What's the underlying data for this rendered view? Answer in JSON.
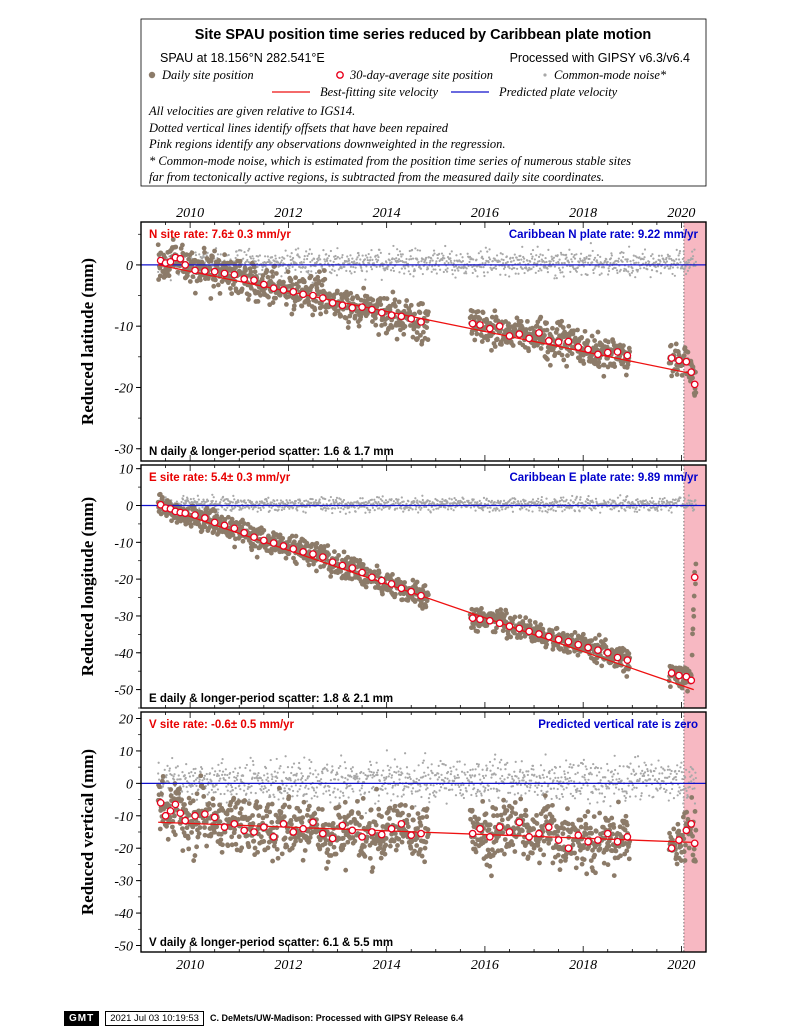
{
  "header": {
    "title": "Site SPAU position time series reduced by Caribbean plate motion",
    "site_line": "SPAU at 18.156°N 282.541°E",
    "processing": "Processed with GIPSY v6.3/v6.4",
    "legend": {
      "daily": "Daily site position",
      "avg30": "30-day-average site position",
      "cmn": "Common-mode noise*",
      "best": "Best-fitting site velocity",
      "pred": "Predicted plate velocity"
    },
    "notes": [
      "All velocities are given relative to IGS14.",
      "Dotted vertical lines identify offsets that have been repaired",
      "Pink regions identify any observations downweighted in the regression.",
      "* Common-mode noise, which is estimated from the position time series of numerous stable sites",
      "far from tectonically active regions, is subtracted from the measured daily site coordinates."
    ]
  },
  "colors": {
    "daily": "#8c7b69",
    "avg_edge": "#e8001c",
    "cmn": "#a8a8a8",
    "fit": "#ee1111",
    "plate": "#1010cc",
    "pink": "#f7b8c2",
    "site_rate_text": "#e80000",
    "plate_rate_text": "#0000cc"
  },
  "chart_data": [
    {
      "type": "scatter",
      "component": "N",
      "ylabel": "Reduced latitude (mm)",
      "site_rate": "N site rate:  7.6± 0.3 mm/yr",
      "plate_rate": "Caribbean N plate rate: 9.22 mm/yr",
      "scatter": "N daily & longer-period scatter:   1.6 &   1.7 mm",
      "xlim": [
        2009.0,
        2020.5
      ],
      "ylim": [
        -32,
        7
      ],
      "yticks": [
        0,
        -10,
        -20,
        -30
      ],
      "xticks": [
        2010,
        2012,
        2014,
        2016,
        2018,
        2020
      ],
      "fit_line": [
        [
          2009.35,
          0.0
        ],
        [
          2020.25,
          -17.8
        ]
      ],
      "downweighted_from": 2020.05,
      "offset_epochs": [
        2020.05
      ],
      "segments": [
        [
          2009.35,
          2014.85
        ],
        [
          2015.7,
          2018.95
        ],
        [
          2019.75,
          2020.3
        ]
      ],
      "avg30": [
        [
          2009.4,
          0.7
        ],
        [
          2009.5,
          0.3
        ],
        [
          2009.6,
          0.5
        ],
        [
          2009.7,
          1.2
        ],
        [
          2009.8,
          1.0
        ],
        [
          2009.9,
          0.0
        ],
        [
          2010.1,
          -0.9
        ],
        [
          2010.3,
          -1.0
        ],
        [
          2010.5,
          -1.1
        ],
        [
          2010.7,
          -1.4
        ],
        [
          2010.9,
          -1.6
        ],
        [
          2011.1,
          -2.3
        ],
        [
          2011.3,
          -2.5
        ],
        [
          2011.5,
          -3.2
        ],
        [
          2011.7,
          -3.8
        ],
        [
          2011.9,
          -4.1
        ],
        [
          2012.1,
          -4.4
        ],
        [
          2012.3,
          -4.8
        ],
        [
          2012.5,
          -5.0
        ],
        [
          2012.7,
          -5.4
        ],
        [
          2012.9,
          -6.2
        ],
        [
          2013.1,
          -6.6
        ],
        [
          2013.3,
          -7.0
        ],
        [
          2013.5,
          -6.9
        ],
        [
          2013.7,
          -7.3
        ],
        [
          2013.9,
          -7.8
        ],
        [
          2014.1,
          -8.2
        ],
        [
          2014.3,
          -8.4
        ],
        [
          2014.5,
          -8.8
        ],
        [
          2014.7,
          -9.3
        ],
        [
          2015.75,
          -9.6
        ],
        [
          2015.9,
          -9.8
        ],
        [
          2016.1,
          -10.4
        ],
        [
          2016.3,
          -10.0
        ],
        [
          2016.5,
          -11.6
        ],
        [
          2016.7,
          -11.3
        ],
        [
          2016.9,
          -12.0
        ],
        [
          2017.1,
          -11.1
        ],
        [
          2017.3,
          -12.4
        ],
        [
          2017.5,
          -12.6
        ],
        [
          2017.7,
          -12.5
        ],
        [
          2017.9,
          -13.4
        ],
        [
          2018.1,
          -13.8
        ],
        [
          2018.3,
          -14.6
        ],
        [
          2018.5,
          -14.3
        ],
        [
          2018.7,
          -14.2
        ],
        [
          2018.9,
          -14.8
        ],
        [
          2019.8,
          -15.2
        ],
        [
          2019.95,
          -15.6
        ],
        [
          2020.1,
          -15.8
        ],
        [
          2020.2,
          -17.5
        ],
        [
          2020.27,
          -19.5
        ]
      ]
    },
    {
      "type": "scatter",
      "component": "E",
      "ylabel": "Reduced longitude (mm)",
      "site_rate": "E site rate:  5.4± 0.3 mm/yr",
      "plate_rate": "Caribbean E plate rate: 9.89 mm/yr",
      "scatter": "E daily & longer-period scatter:   1.8 &   2.1 mm",
      "xlim": [
        2009.0,
        2020.5
      ],
      "ylim": [
        -55,
        11
      ],
      "yticks": [
        10,
        0,
        -10,
        -20,
        -30,
        -40,
        -50
      ],
      "xticks": [
        2010,
        2012,
        2014,
        2016,
        2018,
        2020
      ],
      "fit_line": [
        [
          2009.35,
          0.0
        ],
        [
          2020.25,
          -50.0
        ]
      ],
      "downweighted_from": 2020.05,
      "offset_epochs": [
        2020.05
      ],
      "segments": [
        [
          2009.35,
          2014.85
        ],
        [
          2015.7,
          2018.95
        ],
        [
          2019.75,
          2020.3
        ]
      ],
      "avg30": [
        [
          2009.4,
          0.2
        ],
        [
          2009.5,
          -0.7
        ],
        [
          2009.6,
          -0.9
        ],
        [
          2009.7,
          -1.6
        ],
        [
          2009.8,
          -1.9
        ],
        [
          2009.9,
          -2.1
        ],
        [
          2010.1,
          -2.6
        ],
        [
          2010.3,
          -3.4
        ],
        [
          2010.5,
          -4.6
        ],
        [
          2010.7,
          -5.4
        ],
        [
          2010.9,
          -6.2
        ],
        [
          2011.1,
          -7.4
        ],
        [
          2011.3,
          -8.6
        ],
        [
          2011.5,
          -9.5
        ],
        [
          2011.7,
          -10.2
        ],
        [
          2011.9,
          -11.0
        ],
        [
          2012.1,
          -11.8
        ],
        [
          2012.3,
          -12.6
        ],
        [
          2012.5,
          -13.2
        ],
        [
          2012.7,
          -14.0
        ],
        [
          2012.9,
          -15.4
        ],
        [
          2013.1,
          -16.3
        ],
        [
          2013.3,
          -17.0
        ],
        [
          2013.5,
          -18.2
        ],
        [
          2013.7,
          -19.5
        ],
        [
          2013.9,
          -20.4
        ],
        [
          2014.1,
          -21.3
        ],
        [
          2014.3,
          -22.5
        ],
        [
          2014.5,
          -23.4
        ],
        [
          2014.7,
          -24.5
        ],
        [
          2015.75,
          -30.6
        ],
        [
          2015.9,
          -30.9
        ],
        [
          2016.1,
          -31.3
        ],
        [
          2016.3,
          -32.0
        ],
        [
          2016.5,
          -32.8
        ],
        [
          2016.7,
          -33.4
        ],
        [
          2016.9,
          -34.2
        ],
        [
          2017.1,
          -34.9
        ],
        [
          2017.3,
          -35.6
        ],
        [
          2017.5,
          -36.4
        ],
        [
          2017.7,
          -37.0
        ],
        [
          2017.9,
          -37.8
        ],
        [
          2018.1,
          -38.6
        ],
        [
          2018.3,
          -39.3
        ],
        [
          2018.5,
          -40.0
        ],
        [
          2018.7,
          -41.3
        ],
        [
          2018.9,
          -42.0
        ],
        [
          2019.8,
          -45.5
        ],
        [
          2019.95,
          -46.2
        ],
        [
          2020.1,
          -46.5
        ],
        [
          2020.2,
          -47.5
        ],
        [
          2020.27,
          -19.5
        ]
      ]
    },
    {
      "type": "scatter",
      "component": "V",
      "ylabel": "Reduced vertical (mm)",
      "site_rate": "V site rate:  -0.6± 0.5 mm/yr",
      "plate_rate": "Predicted vertical rate is zero",
      "scatter": "V daily & longer-period scatter:   6.1 &   5.5 mm",
      "xlim": [
        2009.0,
        2020.5
      ],
      "ylim": [
        -52,
        22
      ],
      "yticks": [
        20,
        10,
        0,
        -10,
        -20,
        -30,
        -40,
        -50
      ],
      "xticks": [
        2010,
        2012,
        2014,
        2016,
        2018,
        2020
      ],
      "fit_line": [
        [
          2009.35,
          -12.0
        ],
        [
          2020.25,
          -18.2
        ]
      ],
      "downweighted_from": 2020.05,
      "offset_epochs": [
        2020.05
      ],
      "segments": [
        [
          2009.35,
          2014.85
        ],
        [
          2015.7,
          2018.95
        ],
        [
          2019.75,
          2020.3
        ]
      ],
      "avg30": [
        [
          2009.4,
          -6.0
        ],
        [
          2009.5,
          -10.0
        ],
        [
          2009.6,
          -8.5
        ],
        [
          2009.7,
          -6.5
        ],
        [
          2009.8,
          -9.2
        ],
        [
          2009.9,
          -11.5
        ],
        [
          2010.1,
          -10.0
        ],
        [
          2010.3,
          -9.5
        ],
        [
          2010.5,
          -10.5
        ],
        [
          2010.7,
          -13.5
        ],
        [
          2010.9,
          -12.5
        ],
        [
          2011.1,
          -14.5
        ],
        [
          2011.3,
          -15.0
        ],
        [
          2011.5,
          -13.5
        ],
        [
          2011.7,
          -16.5
        ],
        [
          2011.9,
          -12.5
        ],
        [
          2012.1,
          -15.0
        ],
        [
          2012.3,
          -14.0
        ],
        [
          2012.5,
          -12.0
        ],
        [
          2012.7,
          -15.5
        ],
        [
          2012.9,
          -17.0
        ],
        [
          2013.1,
          -13.0
        ],
        [
          2013.3,
          -14.5
        ],
        [
          2013.5,
          -16.5
        ],
        [
          2013.7,
          -15.0
        ],
        [
          2013.9,
          -15.8
        ],
        [
          2014.1,
          -14.0
        ],
        [
          2014.3,
          -12.5
        ],
        [
          2014.5,
          -16.0
        ],
        [
          2014.7,
          -15.5
        ],
        [
          2015.75,
          -15.5
        ],
        [
          2015.9,
          -14.0
        ],
        [
          2016.1,
          -16.5
        ],
        [
          2016.3,
          -13.5
        ],
        [
          2016.5,
          -15.0
        ],
        [
          2016.7,
          -12.0
        ],
        [
          2016.9,
          -16.5
        ],
        [
          2017.1,
          -15.5
        ],
        [
          2017.3,
          -13.5
        ],
        [
          2017.5,
          -17.5
        ],
        [
          2017.7,
          -20.0
        ],
        [
          2017.9,
          -16.0
        ],
        [
          2018.1,
          -18.0
        ],
        [
          2018.3,
          -17.5
        ],
        [
          2018.5,
          -15.5
        ],
        [
          2018.7,
          -18.0
        ],
        [
          2018.9,
          -16.5
        ],
        [
          2019.8,
          -20.0
        ],
        [
          2019.95,
          -17.5
        ],
        [
          2020.1,
          -14.5
        ],
        [
          2020.2,
          -12.5
        ],
        [
          2020.27,
          -18.5
        ]
      ]
    }
  ],
  "footer": {
    "logo": "GMT",
    "timestamp": "2021 Jul 03 10:19:53",
    "credit": "C. DeMets/UW-Madison: Processed with GIPSY Release 6.4"
  }
}
